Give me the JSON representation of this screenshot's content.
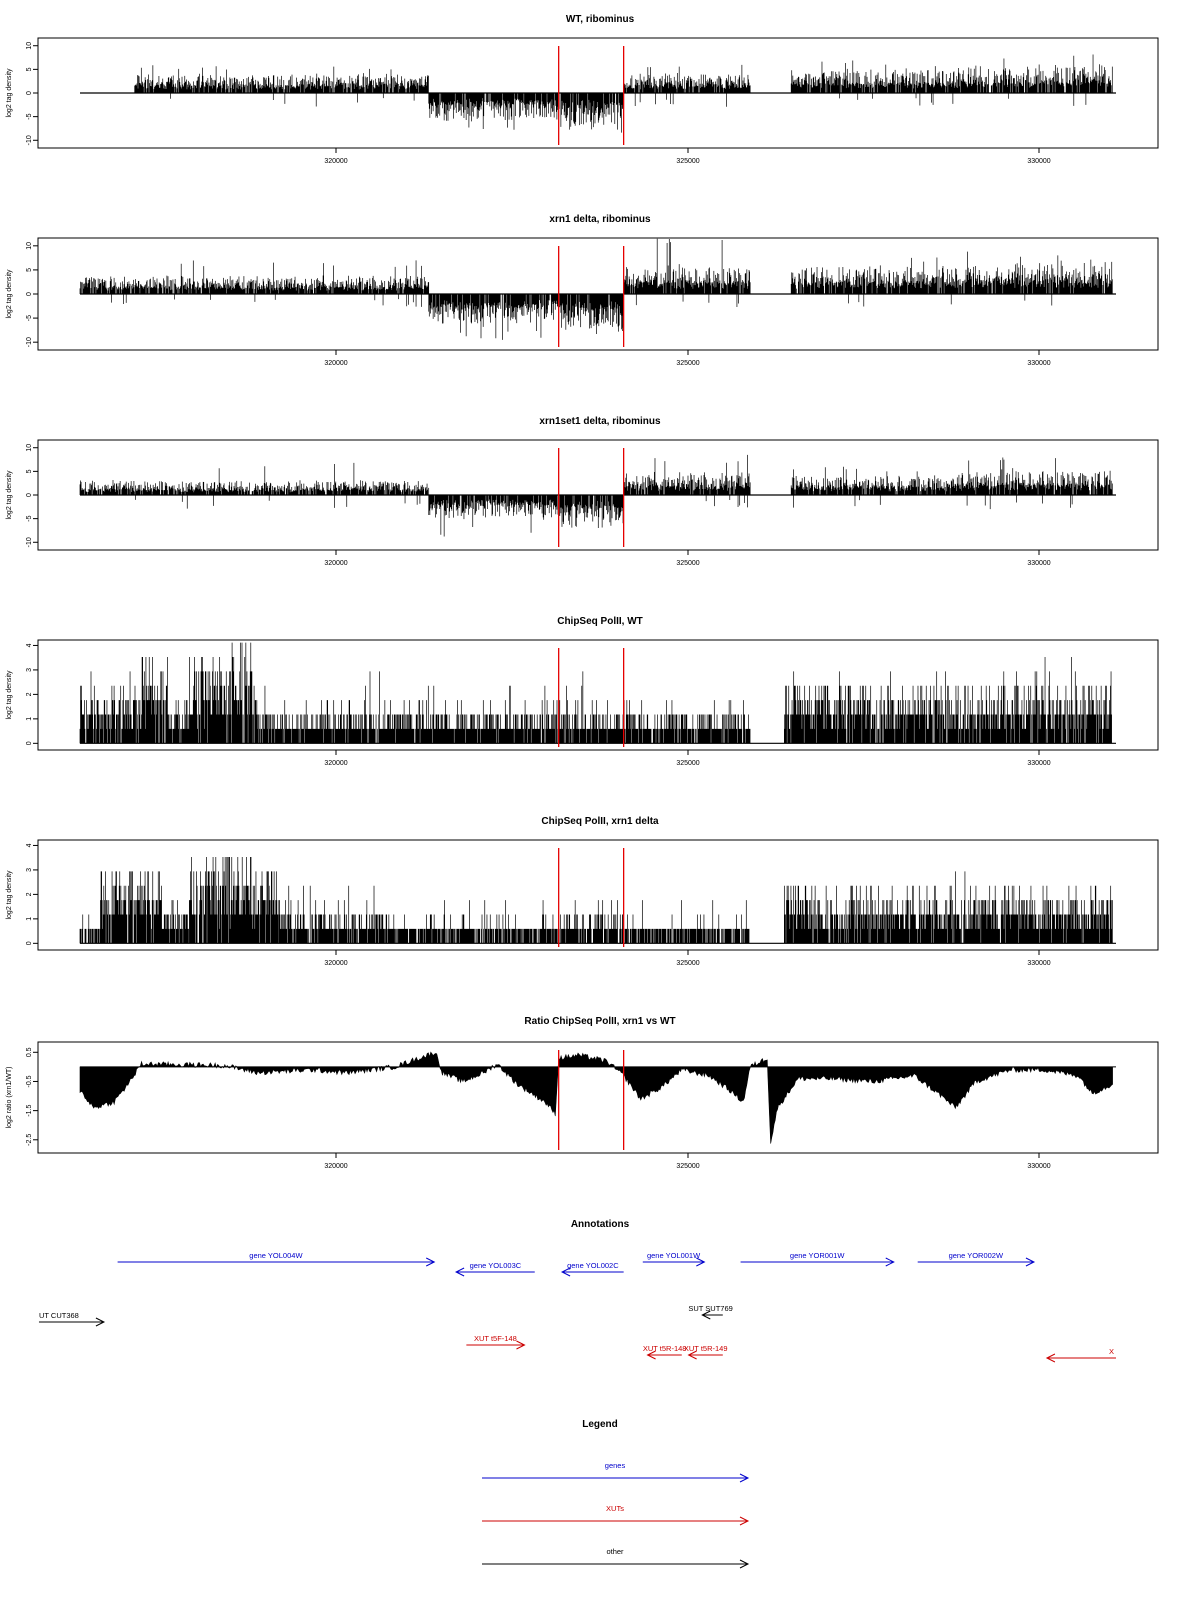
{
  "chart_data": [
    {
      "type": "bar",
      "title": "WT, ribominus",
      "ylabel": "log2 tag density",
      "xlim": [
        316400,
        331550
      ],
      "ylim": [
        -11,
        11
      ],
      "yticks": [
        "10",
        "5",
        "0",
        "-5",
        "-10"
      ],
      "xticks": [
        "320000",
        "325000",
        "330000"
      ],
      "red_lines_x": [
        323400,
        324350
      ],
      "segments": [
        {
          "x": [
            316400,
            317200
          ],
          "kind": "flat"
        },
        {
          "x": [
            317200,
            321500
          ],
          "kind": "pos",
          "mean": 2.4,
          "peak": 6.5
        },
        {
          "x": [
            321500,
            323400
          ],
          "kind": "neg",
          "mean": -3.5,
          "peak": -8.5
        },
        {
          "x": [
            323400,
            324350
          ],
          "kind": "neg",
          "mean": -4.5,
          "peak": -8.5
        },
        {
          "x": [
            324350,
            326200
          ],
          "kind": "pos",
          "mean": 2.5,
          "peak": 6.0
        },
        {
          "x": [
            326200,
            326800
          ],
          "kind": "flat"
        },
        {
          "x": [
            326800,
            329300
          ],
          "kind": "pos",
          "mean": 3.0,
          "peak": 7.0
        },
        {
          "x": [
            329300,
            331500
          ],
          "kind": "pos",
          "mean": 3.5,
          "peak": 9.0
        }
      ]
    },
    {
      "type": "bar",
      "title": "xrn1 delta, ribominus",
      "ylabel": "log2 tag density",
      "xlim": [
        316400,
        331550
      ],
      "ylim": [
        -11,
        11
      ],
      "yticks": [
        "10",
        "5",
        "0",
        "-5",
        "-10"
      ],
      "xticks": [
        "320000",
        "325000",
        "330000"
      ],
      "red_lines_x": [
        323400,
        324350
      ],
      "segments": [
        {
          "x": [
            316400,
            321500
          ],
          "kind": "pos",
          "mean": 2.2,
          "peak": 7.0
        },
        {
          "x": [
            321500,
            323400
          ],
          "kind": "neg",
          "mean": -4.0,
          "peak": -10.0
        },
        {
          "x": [
            323400,
            324350
          ],
          "kind": "neg",
          "mean": -5.0,
          "peak": -9.0
        },
        {
          "x": [
            324350,
            326200
          ],
          "kind": "pos",
          "mean": 3.5,
          "peak": 11.5
        },
        {
          "x": [
            326200,
            326800
          ],
          "kind": "flat"
        },
        {
          "x": [
            326800,
            329300
          ],
          "kind": "pos",
          "mean": 3.5,
          "peak": 8.0
        },
        {
          "x": [
            329300,
            331500
          ],
          "kind": "pos",
          "mean": 4.0,
          "peak": 9.5
        }
      ]
    },
    {
      "type": "bar",
      "title": "xrn1set1 delta, ribominus",
      "ylabel": "log2 tag density",
      "xlim": [
        316400,
        331550
      ],
      "ylim": [
        -11,
        11
      ],
      "yticks": [
        "10",
        "5",
        "0",
        "-5",
        "-10"
      ],
      "xticks": [
        "320000",
        "325000",
        "330000"
      ],
      "red_lines_x": [
        323400,
        324350
      ],
      "segments": [
        {
          "x": [
            316400,
            321500
          ],
          "kind": "pos",
          "mean": 1.8,
          "peak": 7.5
        },
        {
          "x": [
            321500,
            323400
          ],
          "kind": "neg",
          "mean": -3.0,
          "peak": -9.0
        },
        {
          "x": [
            323400,
            324350
          ],
          "kind": "neg",
          "mean": -4.0,
          "peak": -7.5
        },
        {
          "x": [
            324350,
            326200
          ],
          "kind": "pos",
          "mean": 2.8,
          "peak": 8.5
        },
        {
          "x": [
            326200,
            326800
          ],
          "kind": "flat"
        },
        {
          "x": [
            326800,
            329300
          ],
          "kind": "pos",
          "mean": 2.5,
          "peak": 6.5
        },
        {
          "x": [
            329300,
            331500
          ],
          "kind": "pos",
          "mean": 3.2,
          "peak": 8.0
        }
      ]
    },
    {
      "type": "bar",
      "title": "ChipSeq PolII, WT",
      "ylabel": "log2 tag density",
      "xlim": [
        316400,
        331550
      ],
      "ylim": [
        -0.15,
        4.1
      ],
      "yticks": [
        "4",
        "3",
        "2",
        "1",
        "0"
      ],
      "xticks": [
        "320000",
        "325000",
        "330000"
      ],
      "red_lines_x": [
        323400,
        324350
      ],
      "segments": [
        {
          "x": [
            316400,
            317300
          ],
          "kind": "pos",
          "mean": 1.5,
          "peak": 3.3
        },
        {
          "x": [
            317300,
            317700
          ],
          "kind": "pos",
          "mean": 2.5,
          "peak": 3.6
        },
        {
          "x": [
            317700,
            318000
          ],
          "kind": "pos",
          "mean": 1.2,
          "peak": 2.5
        },
        {
          "x": [
            318000,
            318600
          ],
          "kind": "pos",
          "mean": 2.2,
          "peak": 3.5
        },
        {
          "x": [
            318600,
            319000
          ],
          "kind": "pos",
          "mean": 3.0,
          "peak": 3.9
        },
        {
          "x": [
            319000,
            326200
          ],
          "kind": "pos",
          "mean": 1.0,
          "peak": 2.8
        },
        {
          "x": [
            326200,
            326700
          ],
          "kind": "flat"
        },
        {
          "x": [
            326700,
            331500
          ],
          "kind": "pos",
          "mean": 1.6,
          "peak": 3.6
        }
      ]
    },
    {
      "type": "bar",
      "title": "ChipSeq PolII, xrn1 delta",
      "ylabel": "log2 tag density",
      "xlim": [
        316400,
        331550
      ],
      "ylim": [
        -0.15,
        4.1
      ],
      "yticks": [
        "4",
        "3",
        "2",
        "1",
        "0"
      ],
      "xticks": [
        "320000",
        "325000",
        "330000"
      ],
      "red_lines_x": [
        323400,
        324350
      ],
      "segments": [
        {
          "x": [
            316400,
            316700
          ],
          "kind": "pos",
          "mean": 0.5,
          "peak": 1.6
        },
        {
          "x": [
            316700,
            317600
          ],
          "kind": "pos",
          "mean": 2.2,
          "peak": 3.2
        },
        {
          "x": [
            317600,
            318000
          ],
          "kind": "pos",
          "mean": 1.0,
          "peak": 2.0
        },
        {
          "x": [
            318000,
            319300
          ],
          "kind": "pos",
          "mean": 2.3,
          "peak": 3.4
        },
        {
          "x": [
            319300,
            321000
          ],
          "kind": "pos",
          "mean": 1.0,
          "peak": 2.5
        },
        {
          "x": [
            321000,
            323400
          ],
          "kind": "pos",
          "mean": 0.6,
          "peak": 1.8
        },
        {
          "x": [
            323400,
            324350
          ],
          "kind": "pos",
          "mean": 0.9,
          "peak": 2.0
        },
        {
          "x": [
            324350,
            326200
          ],
          "kind": "pos",
          "mean": 0.6,
          "peak": 1.8
        },
        {
          "x": [
            326200,
            326700
          ],
          "kind": "flat"
        },
        {
          "x": [
            326700,
            328400
          ],
          "kind": "pos",
          "mean": 1.5,
          "peak": 2.8
        },
        {
          "x": [
            328400,
            331500
          ],
          "kind": "pos",
          "mean": 1.4,
          "peak": 2.8
        }
      ]
    },
    {
      "type": "area",
      "title": "Ratio ChipSeq PolII, xrn1 vs WT",
      "ylabel": "log2 ratio (xrn1/WT)",
      "xlim": [
        316400,
        331550
      ],
      "ylim": [
        -2.85,
        0.75
      ],
      "yticks": [
        "0.5",
        "-0.5",
        "-1.5",
        "-2.5"
      ],
      "xticks": [
        "320000",
        "325000",
        "330000"
      ],
      "red_lines_x": [
        323400,
        324350
      ],
      "knots": [
        [
          316400,
          -0.8
        ],
        [
          316600,
          -1.4
        ],
        [
          316900,
          -1.2
        ],
        [
          317100,
          -0.6
        ],
        [
          317300,
          0.1
        ],
        [
          318500,
          0.05
        ],
        [
          319000,
          -0.2
        ],
        [
          319800,
          -0.1
        ],
        [
          320300,
          -0.2
        ],
        [
          321000,
          0.0
        ],
        [
          321600,
          0.5
        ],
        [
          321700,
          -0.2
        ],
        [
          322000,
          -0.5
        ],
        [
          322300,
          -0.2
        ],
        [
          322500,
          0.1
        ],
        [
          322800,
          -0.6
        ],
        [
          323200,
          -1.2
        ],
        [
          323350,
          -1.6
        ],
        [
          323400,
          0.3
        ],
        [
          323700,
          0.4
        ],
        [
          324100,
          0.2
        ],
        [
          324350,
          -0.3
        ],
        [
          324600,
          -1.1
        ],
        [
          324900,
          -0.7
        ],
        [
          325200,
          -0.1
        ],
        [
          325600,
          -0.3
        ],
        [
          325900,
          -0.8
        ],
        [
          326100,
          -1.2
        ],
        [
          326200,
          0.0
        ],
        [
          326450,
          0.3
        ],
        [
          326500,
          -2.6
        ],
        [
          326600,
          -1.4
        ],
        [
          326900,
          -0.4
        ],
        [
          327400,
          -0.4
        ],
        [
          328000,
          -0.5
        ],
        [
          328600,
          -0.3
        ],
        [
          329000,
          -1.0
        ],
        [
          329200,
          -1.4
        ],
        [
          329500,
          -0.5
        ],
        [
          330000,
          -0.1
        ],
        [
          330500,
          -0.1
        ],
        [
          331000,
          -0.3
        ],
        [
          331200,
          -0.9
        ],
        [
          331500,
          -0.6
        ]
      ]
    }
  ],
  "annotations": {
    "title": "Annotations",
    "items": [
      {
        "label": "gene YOL004W",
        "color": "#0000cc",
        "start": 316950,
        "end": 321580,
        "dir": "right",
        "row": 0
      },
      {
        "label": "gene YOL003C",
        "color": "#0000cc",
        "start": 321900,
        "end": 323050,
        "dir": "left",
        "row": 1
      },
      {
        "label": "gene YOL002C",
        "color": "#0000cc",
        "start": 323450,
        "end": 324350,
        "dir": "left",
        "row": 1
      },
      {
        "label": "gene YOL001W",
        "color": "#0000cc",
        "start": 324630,
        "end": 325530,
        "dir": "right",
        "row": 0
      },
      {
        "label": "gene YOR001W",
        "color": "#0000cc",
        "start": 326060,
        "end": 328300,
        "dir": "right",
        "row": 0
      },
      {
        "label": "gene YOR002W",
        "color": "#0000cc",
        "start": 328650,
        "end": 330350,
        "dir": "right",
        "row": 0
      },
      {
        "label": "UT CUT368",
        "color": "#000000",
        "start": 315800,
        "end": 316750,
        "dir": "right",
        "row": 2
      },
      {
        "label": "SUT SUT769",
        "color": "#000000",
        "start": 325500,
        "end": 325800,
        "dir": "left",
        "row": 3
      },
      {
        "label": "XUT t5F-148",
        "color": "#cc0000",
        "start": 322050,
        "end": 322900,
        "dir": "right",
        "row": 4
      },
      {
        "label": "XUT t5R-148",
        "color": "#cc0000",
        "start": 324700,
        "end": 325200,
        "dir": "left",
        "row": 5
      },
      {
        "label": "XUT t5R-149",
        "color": "#cc0000",
        "start": 325300,
        "end": 325800,
        "dir": "left",
        "row": 5
      },
      {
        "label": "X",
        "color": "#cc0000",
        "start": 330540,
        "end": 331550,
        "dir": "left",
        "row": 6
      }
    ]
  },
  "legend": {
    "title": "Legend",
    "items": [
      {
        "label": "genes",
        "color": "#0000cc"
      },
      {
        "label": "XUTs",
        "color": "#cc0000"
      },
      {
        "label": "other",
        "color": "#000000"
      }
    ]
  }
}
